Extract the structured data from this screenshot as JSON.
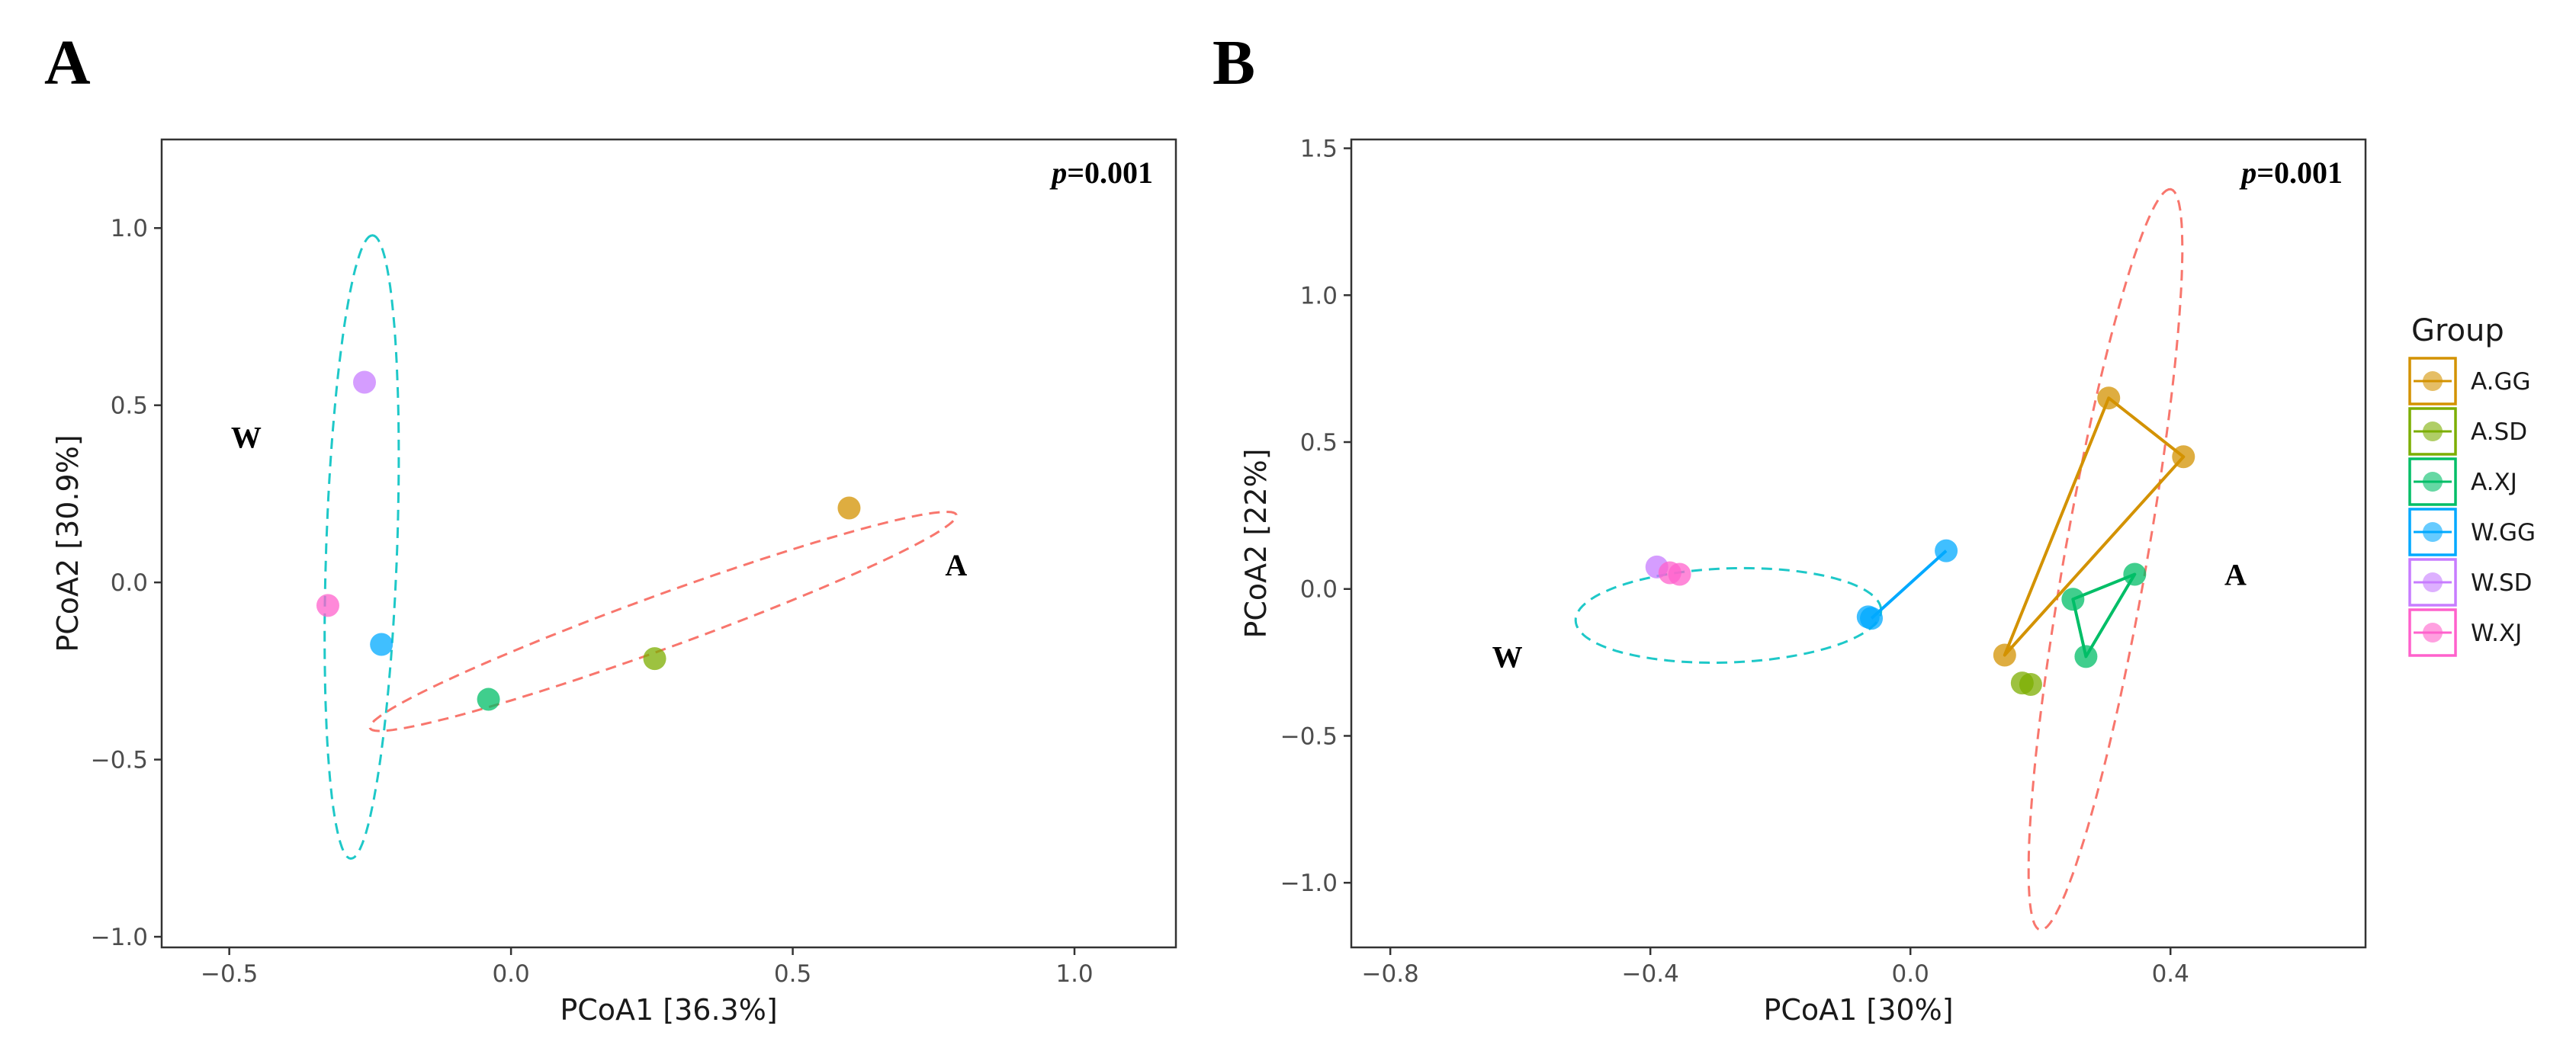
{
  "chart_data": [
    {
      "type": "scatter",
      "panel": "A",
      "xlabel": "PCoA1 [36.3%]",
      "ylabel": "PCoA2 [30.9%]",
      "xlim": [
        -0.62,
        1.18
      ],
      "ylim": [
        -1.03,
        1.25
      ],
      "xticks": [
        -0.5,
        0.0,
        0.5,
        1.0
      ],
      "xtick_labels": [
        "−0.5",
        "0.0",
        "0.5",
        "1.0"
      ],
      "yticks": [
        -1.0,
        -0.5,
        0.0,
        0.5,
        1.0
      ],
      "ytick_labels": [
        "−1.0",
        "−0.5",
        "0.0",
        "0.5",
        "1.0"
      ],
      "grid": false,
      "annotation_p_italic": "p",
      "annotation_p_value": "=0.001",
      "group_labels": [
        {
          "text": "W",
          "x": -0.47,
          "y": 0.41
        },
        {
          "text": "A",
          "x": 0.79,
          "y": 0.05
        }
      ],
      "ellipses": [
        {
          "name": "W",
          "color": "#1ec8c8",
          "cx": -0.265,
          "cy": 0.1,
          "rx": 0.88,
          "ry": 0.1,
          "angle_deg": 88
        },
        {
          "name": "A",
          "color": "#f8766d",
          "cx": 0.27,
          "cy": -0.11,
          "rx": 0.88,
          "ry": 0.075,
          "angle_deg": 20
        }
      ],
      "points": [
        {
          "group": "A.GG",
          "x": 0.6,
          "y": 0.21
        },
        {
          "group": "A.SD",
          "x": 0.255,
          "y": -0.215
        },
        {
          "group": "A.XJ",
          "x": -0.04,
          "y": -0.33
        },
        {
          "group": "W.GG",
          "x": -0.23,
          "y": -0.175
        },
        {
          "group": "W.SD",
          "x": -0.26,
          "y": 0.565
        },
        {
          "group": "W.XJ",
          "x": -0.325,
          "y": -0.065
        }
      ]
    },
    {
      "type": "scatter",
      "panel": "B",
      "xlabel": "PCoA1 [30%]",
      "ylabel": "PCoA2 [22%]",
      "xlim": [
        -0.86,
        0.7
      ],
      "ylim": [
        -1.22,
        1.53
      ],
      "xticks": [
        -0.8,
        -0.4,
        0.0,
        0.4
      ],
      "xtick_labels": [
        "−0.8",
        "−0.4",
        "0.0",
        "0.4"
      ],
      "yticks": [
        -1.0,
        -0.5,
        0.0,
        0.5,
        1.0,
        1.5
      ],
      "ytick_labels": [
        "−1.0",
        "−0.5",
        "0.0",
        "0.5",
        "1.0",
        "1.5"
      ],
      "grid": false,
      "annotation_p_italic": "p",
      "annotation_p_value": "=0.001",
      "group_labels": [
        {
          "text": "W",
          "x": -0.62,
          "y": -0.23
        },
        {
          "text": "A",
          "x": 0.5,
          "y": 0.05
        }
      ],
      "ellipses": [
        {
          "name": "W",
          "color": "#1ec8c8",
          "cx": -0.28,
          "cy": -0.09,
          "rx": 0.52,
          "ry": 0.16,
          "angle_deg": 2
        },
        {
          "name": "A",
          "color": "#f8766d",
          "cx": 0.3,
          "cy": 0.1,
          "rx": 1.28,
          "ry": 0.14,
          "angle_deg": 80
        }
      ],
      "points": [
        {
          "group": "A.GG",
          "x": 0.305,
          "y": 0.65
        },
        {
          "group": "A.GG",
          "x": 0.42,
          "y": 0.45
        },
        {
          "group": "A.GG",
          "x": 0.145,
          "y": -0.225
        },
        {
          "group": "A.SD",
          "x": 0.172,
          "y": -0.32
        },
        {
          "group": "A.SD",
          "x": 0.185,
          "y": -0.325
        },
        {
          "group": "A.XJ",
          "x": 0.345,
          "y": 0.05
        },
        {
          "group": "A.XJ",
          "x": 0.25,
          "y": -0.035
        },
        {
          "group": "A.XJ",
          "x": 0.27,
          "y": -0.23
        },
        {
          "group": "W.GG",
          "x": 0.055,
          "y": 0.13
        },
        {
          "group": "W.GG",
          "x": -0.06,
          "y": -0.1
        },
        {
          "group": "W.GG",
          "x": -0.065,
          "y": -0.095
        },
        {
          "group": "W.SD",
          "x": -0.39,
          "y": 0.075
        },
        {
          "group": "W.XJ",
          "x": -0.37,
          "y": 0.055
        },
        {
          "group": "W.XJ",
          "x": -0.355,
          "y": 0.05
        }
      ],
      "hulls": [
        {
          "group": "A.GG",
          "path": [
            [
              0.305,
              0.65
            ],
            [
              0.42,
              0.45
            ],
            [
              0.145,
              -0.225
            ]
          ]
        },
        {
          "group": "A.XJ",
          "path": [
            [
              0.345,
              0.05
            ],
            [
              0.25,
              -0.035
            ],
            [
              0.27,
              -0.23
            ]
          ]
        },
        {
          "group": "W.GG",
          "path": [
            [
              0.055,
              0.13
            ],
            [
              -0.06,
              -0.1
            ]
          ]
        }
      ]
    }
  ],
  "legend": {
    "title": "Group",
    "items": [
      {
        "label": "A.GG",
        "color": "#d39200"
      },
      {
        "label": "A.SD",
        "color": "#7cae00"
      },
      {
        "label": "A.XJ",
        "color": "#00be67"
      },
      {
        "label": "W.GG",
        "color": "#00a9ff"
      },
      {
        "label": "W.SD",
        "color": "#c77cff"
      },
      {
        "label": "W.XJ",
        "color": "#ff61cc"
      }
    ]
  },
  "panel_letters": [
    "A",
    "B"
  ]
}
